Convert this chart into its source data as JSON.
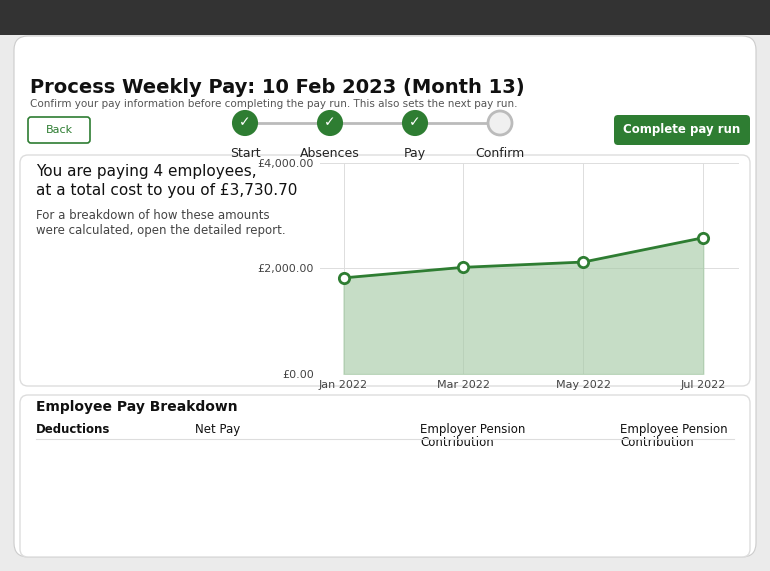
{
  "title": "Process Weekly Pay: 10 Feb 2023 (Month 13)",
  "subtitle": "Confirm your pay information before completing the pay run. This also sets the next pay run.",
  "bg_color": "#ebebeb",
  "dark_bar_color": "#333333",
  "white": "#ffffff",
  "green": "#2e7d32",
  "button_green": "#2e7d32",
  "back_button_text": "Back",
  "complete_button_text": "Complete pay run",
  "steps": [
    "Start",
    "Absences",
    "Pay",
    "Confirm"
  ],
  "steps_done": [
    true,
    true,
    true,
    false
  ],
  "info_text_1": "You are paying 4 employees,",
  "info_text_2": "at a total cost to you of £3,730.70",
  "info_text_3": "For a breakdown of how these amounts",
  "info_text_4": "were calculated, open the detailed report.",
  "chart_x_labels": [
    "Jan 2022",
    "Mar 2022",
    "May 2022",
    "Jul 2022"
  ],
  "line_x": [
    0,
    2,
    4,
    6
  ],
  "line_y": [
    1820,
    2020,
    2120,
    2580
  ],
  "line_color": "#2e7d32",
  "fill_color": "#a8cba8",
  "marker_color": "#2e7d32",
  "grid_color": "#dddddd",
  "bottom_section_title": "Employee Pay Breakdown",
  "bottom_cols": [
    "Deductions",
    "Net Pay",
    "Employer Pension",
    "Employee Pension"
  ],
  "bottom_cols2": [
    "",
    "",
    "Contribution",
    "Contribution"
  ]
}
